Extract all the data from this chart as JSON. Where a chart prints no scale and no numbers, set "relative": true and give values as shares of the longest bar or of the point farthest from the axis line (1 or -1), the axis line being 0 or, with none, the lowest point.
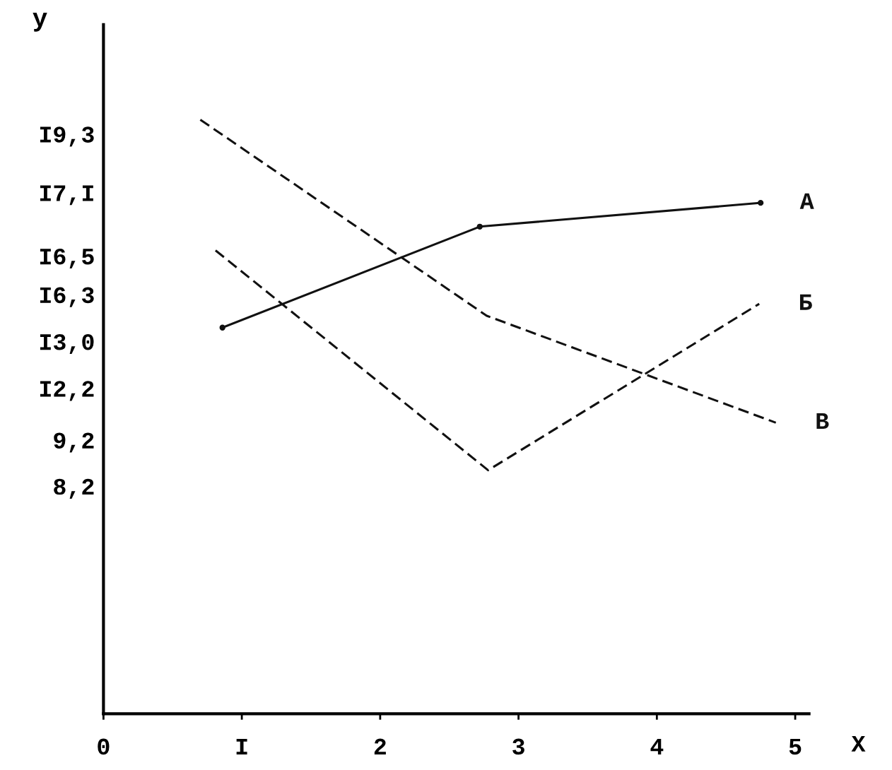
{
  "chart_data": {
    "type": "line",
    "relative": true,
    "xlabel": "X",
    "ylabel": "y",
    "xlim": [
      0,
      5.1
    ],
    "xticks": [
      0,
      {
        "value": 1,
        "label": "I"
      },
      2,
      3,
      4,
      5
    ],
    "annotations": [
      "8,2",
      "9,2",
      "I2,2",
      "I3,0",
      "I6,3",
      "I6,5",
      "I7,I",
      "I9,3"
    ],
    "grid": false,
    "legend": false,
    "series": [
      {
        "name": "A",
        "color": "#111111",
        "x": [
          0.86,
          2.72,
          4.75
        ],
        "values": [
          0.65,
          0.82,
          0.86
        ],
        "line_style": "solid",
        "marker": "circle"
      },
      {
        "name": "Б",
        "color": "#111111",
        "x": [
          0.81,
          2.78,
          4.74
        ],
        "values": [
          0.78,
          0.41,
          0.69
        ],
        "line_style": "dashed",
        "marker": "none"
      },
      {
        "name": "В",
        "color": "#111111",
        "x": [
          0.7,
          2.77,
          4.86
        ],
        "values": [
          1.0,
          0.67,
          0.49
        ],
        "line_style": "dashed",
        "marker": "none"
      }
    ]
  }
}
